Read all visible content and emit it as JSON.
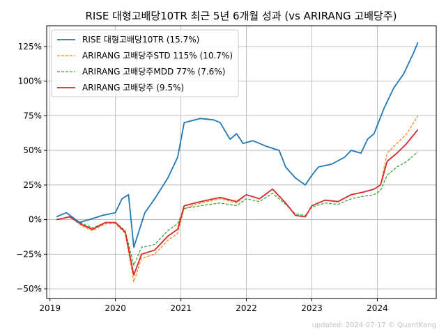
{
  "chart_data": {
    "type": "line",
    "title": "RISE 대형고배당10TR 최근 5년 6개월 성과 (vs ARIRANG 고배당주)",
    "xlabel": "",
    "ylabel": "",
    "xlim": [
      2018.95,
      2024.9
    ],
    "ylim": [
      -57,
      140
    ],
    "x_ticks": [
      2019,
      2020,
      2021,
      2022,
      2023,
      2024
    ],
    "x_tick_labels": [
      "2019",
      "2020",
      "2021",
      "2022",
      "2023",
      "2024"
    ],
    "y_ticks": [
      -50,
      -25,
      0,
      25,
      50,
      75,
      100,
      125
    ],
    "y_tick_labels": [
      "−50%",
      "−25%",
      "0%",
      "25%",
      "50%",
      "75%",
      "100%",
      "125%"
    ],
    "grid": true,
    "legend_position": "top-left",
    "footer": "updated: 2024-07-17 © QuantKang",
    "series": [
      {
        "name": "RISE 대형고배당10TR (15.7%)",
        "color": "#1f77b4",
        "style": "solid",
        "x": [
          2019.1,
          2019.25,
          2019.45,
          2019.6,
          2019.8,
          2020.0,
          2020.1,
          2020.2,
          2020.28,
          2020.45,
          2020.6,
          2020.8,
          2020.95,
          2021.05,
          2021.3,
          2021.5,
          2021.6,
          2021.75,
          2021.85,
          2021.95,
          2022.1,
          2022.3,
          2022.5,
          2022.6,
          2022.75,
          2022.9,
          2023.0,
          2023.1,
          2023.3,
          2023.5,
          2023.6,
          2023.75,
          2023.85,
          2023.95,
          2024.1,
          2024.25,
          2024.4,
          2024.55,
          2024.62
        ],
        "y": [
          2,
          5,
          -2,
          0,
          3,
          5,
          15,
          18,
          -20,
          5,
          15,
          30,
          45,
          70,
          73,
          72,
          70,
          58,
          62,
          55,
          57,
          53,
          50,
          38,
          30,
          25,
          32,
          38,
          40,
          45,
          50,
          48,
          58,
          62,
          80,
          95,
          105,
          120,
          128
        ]
      },
      {
        "name": "ARIRANG 고배당주STD 115% (10.7%)",
        "color": "#ff7f0e",
        "style": "dashed",
        "x": [
          2019.1,
          2019.3,
          2019.5,
          2019.65,
          2019.85,
          2020.0,
          2020.15,
          2020.28,
          2020.4,
          2020.6,
          2020.8,
          2020.95,
          2021.05,
          2021.3,
          2021.6,
          2021.85,
          2022.0,
          2022.2,
          2022.4,
          2022.6,
          2022.75,
          2022.9,
          2023.0,
          2023.2,
          2023.4,
          2023.6,
          2023.8,
          2023.95,
          2024.05,
          2024.15,
          2024.3,
          2024.45,
          2024.62
        ],
        "y": [
          0,
          2,
          -5,
          -8,
          -3,
          -3,
          -10,
          -45,
          -28,
          -25,
          -15,
          -10,
          8,
          12,
          15,
          12,
          18,
          15,
          22,
          12,
          3,
          2,
          10,
          14,
          13,
          18,
          20,
          22,
          25,
          48,
          55,
          62,
          75
        ]
      },
      {
        "name": "ARIRANG 고배당주MDD 77% (7.6%)",
        "color": "#2ca02c",
        "style": "dashed",
        "x": [
          2019.1,
          2019.3,
          2019.5,
          2019.65,
          2019.85,
          2020.0,
          2020.15,
          2020.28,
          2020.4,
          2020.6,
          2020.8,
          2020.95,
          2021.05,
          2021.3,
          2021.6,
          2021.85,
          2022.0,
          2022.2,
          2022.4,
          2022.6,
          2022.75,
          2022.9,
          2023.0,
          2023.2,
          2023.4,
          2023.6,
          2023.8,
          2023.95,
          2024.05,
          2024.15,
          2024.3,
          2024.45,
          2024.62
        ],
        "y": [
          0,
          2,
          -3,
          -6,
          -2,
          -2,
          -8,
          -33,
          -20,
          -18,
          -8,
          -3,
          8,
          10,
          12,
          10,
          15,
          13,
          19,
          11,
          4,
          3,
          9,
          12,
          11,
          15,
          17,
          18,
          21,
          32,
          38,
          42,
          49
        ]
      },
      {
        "name": "ARIRANG 고배당주 (9.5%)",
        "color": "#d62728",
        "style": "solid",
        "x": [
          2019.1,
          2019.3,
          2019.5,
          2019.65,
          2019.85,
          2020.0,
          2020.15,
          2020.28,
          2020.4,
          2020.6,
          2020.8,
          2020.95,
          2021.05,
          2021.3,
          2021.6,
          2021.85,
          2022.0,
          2022.2,
          2022.4,
          2022.6,
          2022.75,
          2022.9,
          2023.0,
          2023.2,
          2023.4,
          2023.6,
          2023.8,
          2023.95,
          2024.05,
          2024.15,
          2024.3,
          2024.45,
          2024.62
        ],
        "y": [
          0,
          2,
          -4,
          -7,
          -2,
          -2,
          -9,
          -40,
          -25,
          -22,
          -12,
          -7,
          10,
          13,
          16,
          13,
          18,
          15,
          22,
          12,
          3,
          2,
          10,
          14,
          13,
          18,
          20,
          22,
          25,
          42,
          48,
          55,
          65
        ]
      }
    ]
  }
}
